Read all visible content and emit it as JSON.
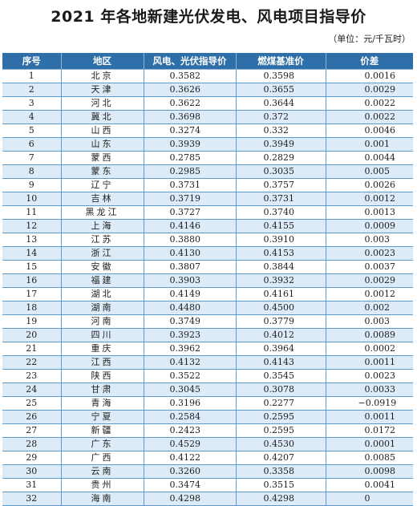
{
  "title": "2021 年各地新建光伏发电、风电项目指导价",
  "unit": "（单位：元/千瓦时）",
  "headers": [
    "序号",
    "地区",
    "风电、光伏指导价",
    "燃煤基准价",
    "价差"
  ],
  "rows": [
    [
      "1",
      "北京",
      "0.3582",
      "0.3598",
      "0.0016"
    ],
    [
      "2",
      "天津",
      "0.3626",
      "0.3655",
      "0.0029"
    ],
    [
      "3",
      "河北",
      "0.3622",
      "0.3644",
      "0.0022"
    ],
    [
      "4",
      "冀北",
      "0.3698",
      "0.372",
      "0.0022"
    ],
    [
      "5",
      "山西",
      "0.3274",
      "0.332",
      "0.0046"
    ],
    [
      "6",
      "山东",
      "0.3939",
      "0.3949",
      "0.001"
    ],
    [
      "7",
      "蒙西",
      "0.2785",
      "0.2829",
      "0.0044"
    ],
    [
      "8",
      "蒙东",
      "0.2985",
      "0.3035",
      "0.005"
    ],
    [
      "9",
      "辽宁",
      "0.3731",
      "0.3757",
      "0.0026"
    ],
    [
      "10",
      "吉林",
      "0.3719",
      "0.3731",
      "0.0012"
    ],
    [
      "11",
      "黑龙江",
      "0.3727",
      "0.3740",
      "0.0013"
    ],
    [
      "12",
      "上海",
      "0.4146",
      "0.4155",
      "0.0009"
    ],
    [
      "13",
      "江苏",
      "0.3880",
      "0.3910",
      "0.003"
    ],
    [
      "14",
      "浙江",
      "0.4130",
      "0.4153",
      "0.0023"
    ],
    [
      "15",
      "安徽",
      "0.3807",
      "0.3844",
      "0.0037"
    ],
    [
      "16",
      "福建",
      "0.3903",
      "0.3932",
      "0.0029"
    ],
    [
      "17",
      "湖北",
      "0.4149",
      "0.4161",
      "0.0012"
    ],
    [
      "18",
      "湖南",
      "0.4480",
      "0.4500",
      "0.002"
    ],
    [
      "19",
      "河南",
      "0.3749",
      "0.3779",
      "0.003"
    ],
    [
      "20",
      "四川",
      "0.3923",
      "0.4012",
      "0.0089"
    ],
    [
      "21",
      "重庆",
      "0.3962",
      "0.3964",
      "0.0002"
    ],
    [
      "22",
      "江西",
      "0.4132",
      "0.4143",
      "0.0011"
    ],
    [
      "23",
      "陕西",
      "0.3522",
      "0.3545",
      "0.0023"
    ],
    [
      "24",
      "甘肃",
      "0.3045",
      "0.3078",
      "0.0033"
    ],
    [
      "25",
      "青海",
      "0.3196",
      "0.2277",
      "−0.0919"
    ],
    [
      "26",
      "宁夏",
      "0.2584",
      "0.2595",
      "0.0011"
    ],
    [
      "27",
      "新疆",
      "0.2423",
      "0.2595",
      "0.0172"
    ],
    [
      "28",
      "广东",
      "0.4529",
      "0.4530",
      "0.0001"
    ],
    [
      "29",
      "广西",
      "0.4122",
      "0.4207",
      "0.0085"
    ],
    [
      "30",
      "云南",
      "0.3260",
      "0.3358",
      "0.0098"
    ],
    [
      "31",
      "贵州",
      "0.3474",
      "0.3515",
      "0.0041"
    ],
    [
      "32",
      "海南",
      "0.4298",
      "0.4298",
      "0"
    ]
  ]
}
